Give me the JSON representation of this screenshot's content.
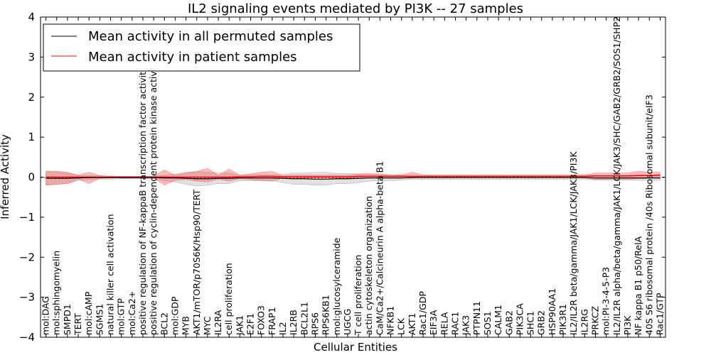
{
  "chart_data": {
    "type": "line",
    "title": "IL2 signaling events mediated by PI3K -- 27 samples",
    "xlabel": "Cellular Entities",
    "ylabel": "Inferred Activity",
    "ylim": [
      -4,
      4
    ],
    "yticks": [
      -4,
      -3,
      -2,
      -1,
      0,
      1,
      2,
      3,
      4
    ],
    "ytick_labels": [
      "−4",
      "−3",
      "−2",
      "−1",
      "0",
      "1",
      "2",
      "3",
      "4"
    ],
    "legend_location": "upper-left",
    "categories": [
      "mol:DAG",
      "mol:sphingomyelin",
      "SMPD1",
      "TERT",
      "mol:cAMP",
      "SGMS1",
      "natural killer cell activation",
      "mol:GTP",
      "mol:Ca2+",
      "positive regulation of NF-kappaB transcription factor activity",
      "positive regulation of cyclin-dependent protein kinase activity",
      "BCL2",
      "mol:GDP",
      "MYB",
      "AKT1/mTOR/p70S6K/Hsp90/TERT",
      "MYC",
      "IL2RA",
      "cell proliferation",
      "JAK1",
      "E2F1",
      "FOXO3",
      "FRAP1",
      "IL2",
      "IL2RB",
      "BCL2L1",
      "RPS6",
      "RPS6KB1",
      "mol:glucosylceramide",
      "UGCG",
      "T cell proliferation",
      "actin cytoskeleton organization",
      "CaM/Ca2+/Calcineurin A alpha-beta B1",
      "NFKB1",
      "LCK",
      "AKT1",
      "Rac1/GDP",
      "EIF3A",
      "RELA",
      "RAC1",
      "JAK3",
      "PTPN11",
      "SOS1",
      "CALM1",
      "GAB2",
      "PIK3CA",
      "SHC1",
      "GRB2",
      "HSP90AA1",
      "PIK3R1",
      "IL2/IL2R beta/gamma/JAK1/LCK/JAK3/PI3K",
      "IL2RG",
      "PRKCZ",
      "mol:PI-3-4-5-P3",
      "IL2/IL2R alpha/beta/gamma/JAK1/LCK/JAK3/SHC/GAB2/GRB2/SOS1/SHP2",
      "PI3K",
      "NF kappa B1 p50/RelA",
      "40S S6 ribosomal protein /40s Ribosomal subunit/eIF3",
      "Rac1/GTP"
    ],
    "series": [
      {
        "name": "Mean activity in all permuted samples",
        "color": "#000000",
        "values": [
          -0.03,
          -0.03,
          -0.03,
          -0.02,
          -0.01,
          -0.01,
          -0.01,
          -0.01,
          -0.01,
          -0.01,
          -0.01,
          -0.02,
          -0.02,
          -0.03,
          -0.04,
          -0.04,
          -0.03,
          -0.03,
          -0.02,
          -0.02,
          -0.02,
          -0.02,
          -0.03,
          -0.04,
          -0.04,
          -0.05,
          -0.05,
          -0.04,
          -0.04,
          -0.03,
          -0.02,
          -0.02,
          -0.02,
          -0.02,
          -0.01,
          -0.01,
          -0.01,
          -0.01,
          -0.01,
          -0.01,
          -0.01,
          -0.01,
          -0.01,
          -0.01,
          -0.01,
          -0.01,
          -0.01,
          -0.01,
          -0.01,
          -0.01,
          -0.01,
          -0.02,
          -0.02,
          -0.02,
          -0.02,
          -0.02,
          -0.02,
          -0.02
        ],
        "upper": [
          0.12,
          0.12,
          0.1,
          0.04,
          0.04,
          0.03,
          0.03,
          0.02,
          0.02,
          0.02,
          0.02,
          0.05,
          0.08,
          0.12,
          0.14,
          0.12,
          0.1,
          0.1,
          0.05,
          0.05,
          0.05,
          0.05,
          0.07,
          0.1,
          0.1,
          0.12,
          0.12,
          0.09,
          0.09,
          0.08,
          0.06,
          0.05,
          0.05,
          0.04,
          0.03,
          0.03,
          0.03,
          0.03,
          0.03,
          0.03,
          0.03,
          0.03,
          0.03,
          0.03,
          0.03,
          0.03,
          0.03,
          0.03,
          0.03,
          0.03,
          0.03,
          0.04,
          0.04,
          0.04,
          0.04,
          0.05,
          0.05,
          0.05
        ],
        "lower": [
          -0.18,
          -0.18,
          -0.16,
          -0.08,
          -0.06,
          -0.05,
          -0.05,
          -0.04,
          -0.04,
          -0.04,
          -0.04,
          -0.09,
          -0.12,
          -0.18,
          -0.22,
          -0.2,
          -0.16,
          -0.16,
          -0.09,
          -0.09,
          -0.09,
          -0.09,
          -0.13,
          -0.18,
          -0.18,
          -0.2,
          -0.2,
          -0.16,
          -0.16,
          -0.14,
          -0.1,
          -0.09,
          -0.09,
          -0.07,
          -0.05,
          -0.05,
          -0.05,
          -0.05,
          -0.05,
          -0.05,
          -0.05,
          -0.05,
          -0.05,
          -0.05,
          -0.05,
          -0.05,
          -0.05,
          -0.05,
          -0.05,
          -0.05,
          -0.05,
          -0.07,
          -0.07,
          -0.07,
          -0.07,
          -0.08,
          -0.08,
          -0.08
        ]
      },
      {
        "name": "Mean activity in patient samples",
        "color": "#ff0000",
        "values": [
          0.0,
          0.0,
          0.0,
          0.0,
          0.0,
          0.0,
          0.0,
          0.0,
          0.0,
          0.0,
          0.0,
          0.0,
          0.0,
          0.0,
          0.0,
          0.0,
          0.0,
          0.0,
          0.01,
          0.01,
          0.02,
          0.02,
          0.01,
          0.01,
          0.01,
          0.01,
          0.01,
          0.01,
          0.01,
          0.02,
          0.02,
          0.02,
          0.02,
          0.02,
          0.02,
          0.02,
          0.02,
          0.02,
          0.02,
          0.02,
          0.02,
          0.02,
          0.02,
          0.02,
          0.02,
          0.02,
          0.02,
          0.02,
          0.02,
          0.02,
          0.02,
          0.03,
          0.03,
          0.03,
          0.03,
          0.04,
          0.04,
          0.05
        ],
        "upper": [
          0.15,
          0.15,
          0.12,
          0.05,
          0.12,
          0.04,
          0.02,
          0.02,
          0.02,
          0.02,
          0.02,
          0.18,
          0.05,
          0.1,
          0.14,
          0.22,
          0.05,
          0.2,
          0.05,
          0.08,
          0.12,
          0.14,
          0.04,
          0.05,
          0.05,
          0.05,
          0.05,
          0.05,
          0.05,
          0.08,
          0.09,
          0.08,
          0.05,
          0.06,
          0.12,
          0.06,
          0.05,
          0.05,
          0.05,
          0.05,
          0.05,
          0.05,
          0.05,
          0.05,
          0.05,
          0.05,
          0.05,
          0.05,
          0.05,
          0.05,
          0.06,
          0.1,
          0.1,
          0.1,
          0.1,
          0.15,
          0.12,
          0.12
        ],
        "lower": [
          -0.2,
          -0.18,
          -0.16,
          -0.05,
          -0.16,
          -0.03,
          -0.02,
          -0.02,
          -0.02,
          -0.02,
          -0.02,
          -0.2,
          -0.08,
          -0.06,
          -0.1,
          -0.12,
          -0.05,
          -0.1,
          -0.04,
          -0.06,
          -0.08,
          -0.1,
          -0.02,
          -0.02,
          -0.02,
          -0.02,
          -0.02,
          -0.02,
          -0.02,
          -0.02,
          -0.02,
          -0.02,
          -0.02,
          -0.02,
          -0.02,
          -0.01,
          -0.01,
          -0.01,
          -0.01,
          -0.01,
          -0.01,
          -0.01,
          -0.01,
          -0.01,
          -0.01,
          -0.01,
          -0.01,
          -0.01,
          -0.01,
          -0.01,
          -0.02,
          -0.06,
          -0.06,
          -0.05,
          -0.05,
          -0.04,
          -0.03,
          -0.02
        ]
      }
    ]
  }
}
